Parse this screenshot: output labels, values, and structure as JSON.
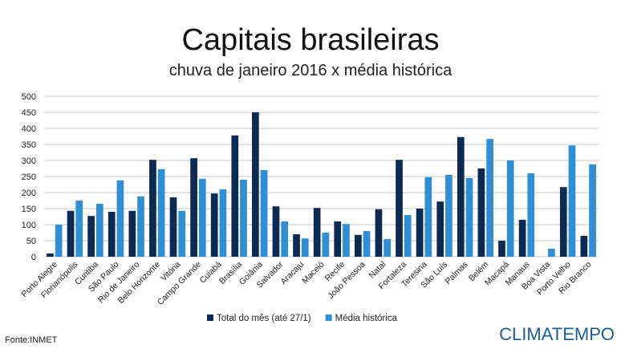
{
  "chart_data": {
    "type": "bar",
    "title": "Capitais brasileiras",
    "subtitle": "chuva de janeiro 2016 x média histórica",
    "categories": [
      "Porto Alegre",
      "Florianópolis",
      "Curitiba",
      "São Paulo",
      "Rio de Janeiro",
      "Belo Horizonte",
      "Vitória",
      "Campo Grande",
      "Cuiabá",
      "Brasília",
      "Goiânia",
      "Salvador",
      "Aracaju",
      "Maceió",
      "Recife",
      "João Pessoa",
      "Natal",
      "Fortaleza",
      "Teresina",
      "São Luís",
      "Palmas",
      "Belém",
      "Macapá",
      "Manaus",
      "Boa Vista",
      "Porto Velho",
      "Rio Branco"
    ],
    "series": [
      {
        "name": "Total do mês (até 27/1)",
        "color": "#0d2b52",
        "values": [
          10,
          143,
          127,
          140,
          143,
          302,
          185,
          307,
          197,
          378,
          450,
          157,
          70,
          152,
          110,
          68,
          148,
          302,
          150,
          172,
          373,
          275,
          50,
          115,
          0,
          217,
          65
        ]
      },
      {
        "name": "Média histórica",
        "color": "#2e8ed6",
        "values": [
          100,
          175,
          165,
          238,
          188,
          273,
          143,
          243,
          210,
          240,
          270,
          110,
          57,
          75,
          102,
          80,
          55,
          130,
          248,
          255,
          245,
          367,
          300,
          260,
          25,
          347,
          288
        ]
      }
    ],
    "ylim": [
      0,
      500
    ],
    "yticks": [
      0,
      50,
      100,
      150,
      200,
      250,
      300,
      350,
      400,
      450,
      500
    ],
    "grid": true,
    "source": "Fonte:INMET",
    "brand": "CLIMATEMPO"
  }
}
